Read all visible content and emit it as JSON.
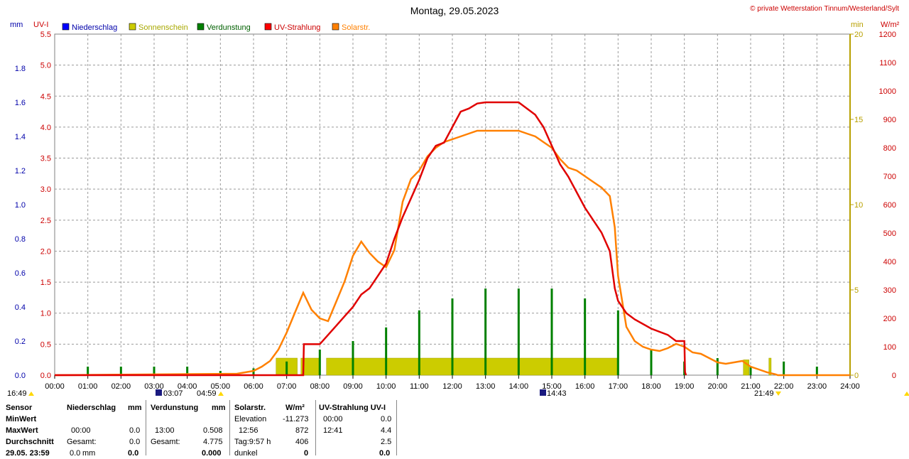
{
  "header": {
    "date": "Montag, 29.05.2023",
    "credit": "© private Wetterstation Tinnum/Westerland/Sylt",
    "unit_mm": "mm",
    "unit_uvi": "UV-I",
    "unit_min": "min",
    "unit_wm2": "W/m²"
  },
  "legend": [
    {
      "label": "Niederschlag",
      "color": "#0000ff"
    },
    {
      "label": "Sonnenschein",
      "color": "#cccc00"
    },
    {
      "label": "Verdunstung",
      "color": "#008000"
    },
    {
      "label": "UV-Strahlung",
      "color": "#ff0000"
    },
    {
      "label": "Solarstr.",
      "color": "#ff8000"
    }
  ],
  "colors": {
    "uv": "#e00000",
    "solar": "#ff8000",
    "sunshine": "#cccc00",
    "evaporation": "#008000",
    "precip": "#0000ff",
    "grid": "#808080",
    "axis_blue": "#0000aa",
    "axis_red": "#cc0000",
    "axis_olive": "#b8a000"
  },
  "chart_data": {
    "type": "line",
    "x_ticks": [
      "00:00",
      "01:00",
      "02:00",
      "03:00",
      "04:00",
      "05:00",
      "06:00",
      "07:00",
      "08:00",
      "09:00",
      "10:00",
      "11:00",
      "12:00",
      "13:00",
      "14:00",
      "15:00",
      "16:00",
      "17:00",
      "18:00",
      "19:00",
      "20:00",
      "21:00",
      "22:00",
      "23:00",
      "24:00"
    ],
    "xlim": [
      0,
      24
    ],
    "axes": {
      "mm": {
        "ticks": [
          "0.0",
          "0.2",
          "0.4",
          "0.6",
          "0.8",
          "1.0",
          "1.2",
          "1.4",
          "1.6",
          "1.8"
        ],
        "range": [
          0,
          2.0
        ]
      },
      "uvi": {
        "ticks": [
          "0.0",
          "0.5",
          "1.0",
          "1.5",
          "2.0",
          "2.5",
          "3.0",
          "3.5",
          "4.0",
          "4.5",
          "5.0",
          "5.5"
        ],
        "range": [
          0,
          5.5
        ]
      },
      "min": {
        "ticks": [
          "0",
          "5",
          "10",
          "15",
          "20"
        ],
        "range": [
          0,
          20
        ]
      },
      "wm2": {
        "ticks": [
          "0",
          "100",
          "200",
          "300",
          "400",
          "500",
          "600",
          "700",
          "800",
          "900",
          "1000",
          "1100",
          "1200"
        ],
        "range": [
          0,
          1200
        ]
      }
    },
    "sunshine_min": [
      {
        "x0": 6.68,
        "x1": 7.32,
        "y": 1.0
      },
      {
        "x0": 7.43,
        "x1": 7.97,
        "y": 1.0
      },
      {
        "x0": 8.2,
        "x1": 16.97,
        "y": 1.0
      },
      {
        "x0": 20.78,
        "x1": 20.95,
        "y": 0.9
      },
      {
        "x0": 21.55,
        "x1": 21.62,
        "y": 1.0
      }
    ],
    "evaporation_mm": [
      {
        "x": 1.0,
        "y": 0.05
      },
      {
        "x": 2.0,
        "y": 0.05
      },
      {
        "x": 3.0,
        "y": 0.05
      },
      {
        "x": 4.0,
        "y": 0.05
      },
      {
        "x": 5.0,
        "y": 0.025
      },
      {
        "x": 6.0,
        "y": 0.04
      },
      {
        "x": 7.0,
        "y": 0.08
      },
      {
        "x": 8.0,
        "y": 0.15
      },
      {
        "x": 9.0,
        "y": 0.2
      },
      {
        "x": 10.0,
        "y": 0.28
      },
      {
        "x": 11.0,
        "y": 0.38
      },
      {
        "x": 12.0,
        "y": 0.45
      },
      {
        "x": 13.0,
        "y": 0.508
      },
      {
        "x": 14.0,
        "y": 0.508
      },
      {
        "x": 15.0,
        "y": 0.508
      },
      {
        "x": 16.0,
        "y": 0.45
      },
      {
        "x": 17.0,
        "y": 0.38
      },
      {
        "x": 18.0,
        "y": 0.15
      },
      {
        "x": 19.0,
        "y": 0.08
      },
      {
        "x": 20.0,
        "y": 0.1
      },
      {
        "x": 21.0,
        "y": 0.05
      },
      {
        "x": 22.0,
        "y": 0.08
      },
      {
        "x": 23.0,
        "y": 0.05
      }
    ],
    "uv_index": [
      [
        0,
        0
      ],
      [
        7.5,
        0
      ],
      [
        7.52,
        0.5
      ],
      [
        8.0,
        0.5
      ],
      [
        8.25,
        0.65
      ],
      [
        8.5,
        0.8
      ],
      [
        8.75,
        0.95
      ],
      [
        9.0,
        1.1
      ],
      [
        9.25,
        1.3
      ],
      [
        9.5,
        1.4
      ],
      [
        9.75,
        1.6
      ],
      [
        10.0,
        1.8
      ],
      [
        10.25,
        2.2
      ],
      [
        10.5,
        2.55
      ],
      [
        10.75,
        2.85
      ],
      [
        11.0,
        3.15
      ],
      [
        11.25,
        3.5
      ],
      [
        11.5,
        3.7
      ],
      [
        11.75,
        3.75
      ],
      [
        12.0,
        4.0
      ],
      [
        12.25,
        4.25
      ],
      [
        12.5,
        4.3
      ],
      [
        12.75,
        4.38
      ],
      [
        13.0,
        4.4
      ],
      [
        13.5,
        4.4
      ],
      [
        14.0,
        4.4
      ],
      [
        14.25,
        4.3
      ],
      [
        14.5,
        4.2
      ],
      [
        14.75,
        4.0
      ],
      [
        15.0,
        3.7
      ],
      [
        15.25,
        3.4
      ],
      [
        15.5,
        3.2
      ],
      [
        15.75,
        2.95
      ],
      [
        16.0,
        2.7
      ],
      [
        16.25,
        2.5
      ],
      [
        16.5,
        2.3
      ],
      [
        16.75,
        2.0
      ],
      [
        16.9,
        1.4
      ],
      [
        17.0,
        1.2
      ],
      [
        17.25,
        1.0
      ],
      [
        17.5,
        0.9
      ],
      [
        18.0,
        0.75
      ],
      [
        18.5,
        0.65
      ],
      [
        18.75,
        0.55
      ],
      [
        19.0,
        0.55
      ],
      [
        19.02,
        0.05
      ],
      [
        19.05,
        0
      ]
    ],
    "solar_wm2": [
      [
        0,
        0
      ],
      [
        5.5,
        5
      ],
      [
        6.0,
        15
      ],
      [
        6.25,
        30
      ],
      [
        6.5,
        50
      ],
      [
        6.75,
        90
      ],
      [
        7.0,
        150
      ],
      [
        7.25,
        220
      ],
      [
        7.5,
        290
      ],
      [
        7.75,
        230
      ],
      [
        8.0,
        200
      ],
      [
        8.25,
        190
      ],
      [
        8.5,
        260
      ],
      [
        8.75,
        330
      ],
      [
        9.0,
        420
      ],
      [
        9.25,
        470
      ],
      [
        9.5,
        430
      ],
      [
        9.75,
        400
      ],
      [
        10.0,
        380
      ],
      [
        10.25,
        440
      ],
      [
        10.5,
        610
      ],
      [
        10.75,
        690
      ],
      [
        11.0,
        720
      ],
      [
        11.25,
        770
      ],
      [
        11.5,
        800
      ],
      [
        11.75,
        820
      ],
      [
        12.0,
        830
      ],
      [
        12.25,
        840
      ],
      [
        12.5,
        850
      ],
      [
        12.75,
        860
      ],
      [
        13.0,
        860
      ],
      [
        13.25,
        860
      ],
      [
        13.5,
        860
      ],
      [
        13.75,
        860
      ],
      [
        14.0,
        860
      ],
      [
        14.25,
        850
      ],
      [
        14.5,
        840
      ],
      [
        14.75,
        820
      ],
      [
        15.0,
        800
      ],
      [
        15.25,
        760
      ],
      [
        15.5,
        730
      ],
      [
        15.75,
        720
      ],
      [
        16.0,
        700
      ],
      [
        16.25,
        680
      ],
      [
        16.5,
        660
      ],
      [
        16.75,
        630
      ],
      [
        16.9,
        520
      ],
      [
        17.0,
        350
      ],
      [
        17.25,
        170
      ],
      [
        17.5,
        120
      ],
      [
        17.75,
        100
      ],
      [
        18.0,
        90
      ],
      [
        18.25,
        85
      ],
      [
        18.5,
        95
      ],
      [
        18.75,
        110
      ],
      [
        19.0,
        100
      ],
      [
        19.25,
        80
      ],
      [
        19.5,
        75
      ],
      [
        19.75,
        60
      ],
      [
        20.0,
        45
      ],
      [
        20.25,
        40
      ],
      [
        20.5,
        45
      ],
      [
        20.75,
        50
      ],
      [
        21.0,
        30
      ],
      [
        21.25,
        20
      ],
      [
        21.5,
        10
      ],
      [
        21.75,
        3
      ],
      [
        21.82,
        0
      ],
      [
        24,
        0
      ]
    ]
  },
  "time_markers": {
    "left_time": "16:49",
    "sunrise_start": "03:07",
    "sunrise": "04:59",
    "mid": "14:43",
    "sunset": "21:49"
  },
  "stats": {
    "row_labels": [
      "Sensor",
      "MinWert",
      "MaxWert",
      "Durchschnitt",
      "29.05. 23:59"
    ],
    "niederschlag": {
      "title": "Niederschlag",
      "unit": "mm",
      "min_time": "",
      "min_val": "",
      "max_time": "00:00",
      "max_val": "0.0",
      "avg_label": "Gesamt:",
      "avg_val": "0.0",
      "last_val": "0.0",
      "last_unit": "mm",
      "last_total": "0.0"
    },
    "verdunstung": {
      "title": "Verdunstung",
      "unit": "mm",
      "max_time": "13:00",
      "max_val": "0.508",
      "avg_label": "Gesamt:",
      "avg_val": "4.775",
      "last_total": "0.000"
    },
    "solar": {
      "title": "Solarstr.",
      "unit": "W/m²",
      "min_label": "Elevation",
      "min_val": "-11.273",
      "max_time": "12:56",
      "max_val": "872",
      "avg_label": "Tag:9:57 h",
      "avg_val": "406",
      "last_label": "dunkel",
      "last_val": "0"
    },
    "uv": {
      "title": "UV-Strahlung UV-I",
      "min_time": "00:00",
      "min_val": "0.0",
      "max_time": "12:41",
      "max_val": "4.4",
      "avg_val": "2.5",
      "last_val": "0.0"
    }
  }
}
